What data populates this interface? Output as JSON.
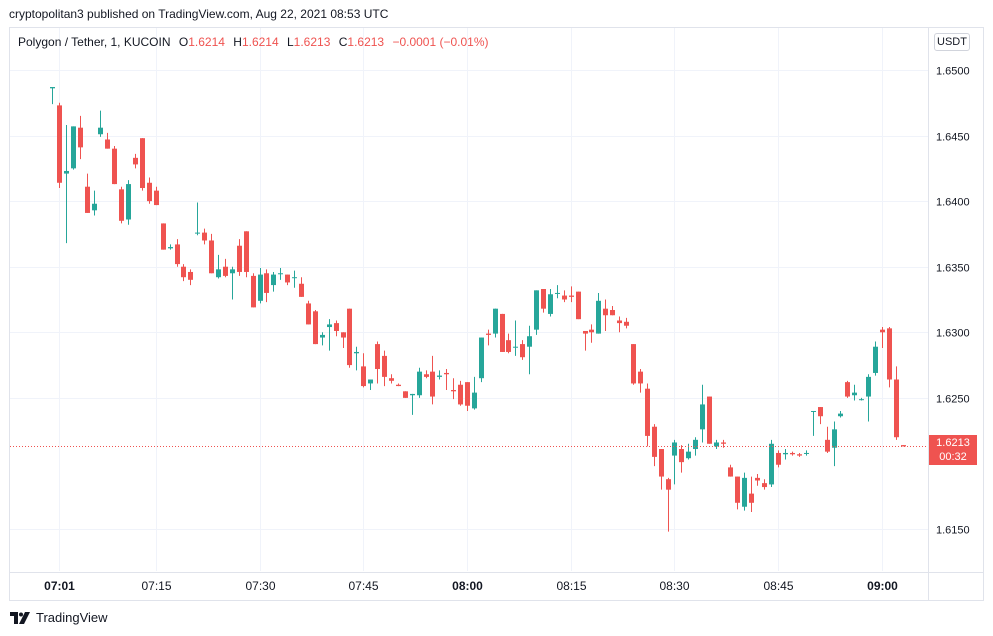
{
  "publisher_line": "cryptopolitan3 published on TradingView.com, Aug 22, 2021 08:53 UTC",
  "legend": {
    "symbol": "Polygon / Tether, 1, KUCOIN",
    "o_label": "O",
    "o": "1.6214",
    "h_label": "H",
    "h": "1.6214",
    "l_label": "L",
    "l": "1.6213",
    "c_label": "C",
    "c": "1.6213",
    "change": "−0.0001 (−0.01%)"
  },
  "currency_button": "USDT",
  "last_price": {
    "price": "1.6213",
    "countdown": "00:32"
  },
  "brand": "TradingView",
  "colors": {
    "up": "#26a69a",
    "down": "#ef5350",
    "grid": "#f0f3fa",
    "axis_text": "#131722"
  },
  "chart_data": {
    "type": "candlestick",
    "y_ticks": [
      "1.6500",
      "1.6450",
      "1.6400",
      "1.6350",
      "1.6300",
      "1.6250",
      "1.6150"
    ],
    "y_tick_values": [
      1.65,
      1.645,
      1.64,
      1.635,
      1.63,
      1.625,
      1.615
    ],
    "ylim": [
      1.6118,
      1.6532
    ],
    "x_ticks": [
      {
        "label": "07:01",
        "minute": 1,
        "bold": true
      },
      {
        "label": "07:15",
        "minute": 15,
        "bold": false
      },
      {
        "label": "07:30",
        "minute": 30,
        "bold": false
      },
      {
        "label": "07:45",
        "minute": 45,
        "bold": false
      },
      {
        "label": "08:00",
        "minute": 60,
        "bold": true
      },
      {
        "label": "08:15",
        "minute": 75,
        "bold": false
      },
      {
        "label": "08:30",
        "minute": 90,
        "bold": false
      },
      {
        "label": "08:45",
        "minute": 105,
        "bold": false
      },
      {
        "label": "09:00",
        "minute": 120,
        "bold": true
      }
    ],
    "x_start": "07:00",
    "last_price_line": 1.6213,
    "candles": [
      [
        1.6486,
        1.6487,
        1.6474,
        1.6487
      ],
      [
        1.6473,
        1.6475,
        1.641,
        1.6414
      ],
      [
        1.6421,
        1.6458,
        1.6368,
        1.6423
      ],
      [
        1.6425,
        1.6457,
        1.6424,
        1.6457
      ],
      [
        1.6456,
        1.6465,
        1.6432,
        1.6441
      ],
      [
        1.6411,
        1.6421,
        1.6391,
        1.6391
      ],
      [
        1.6393,
        1.6408,
        1.6389,
        1.6398
      ],
      [
        1.6451,
        1.6469,
        1.6449,
        1.6456
      ],
      [
        1.6447,
        1.6452,
        1.644,
        1.644
      ],
      [
        1.644,
        1.6442,
        1.6413,
        1.6413
      ],
      [
        1.6409,
        1.6411,
        1.6383,
        1.6385
      ],
      [
        1.6386,
        1.6416,
        1.6382,
        1.6413
      ],
      [
        1.6433,
        1.6436,
        1.6425,
        1.6428
      ],
      [
        1.6448,
        1.6448,
        1.6408,
        1.641
      ],
      [
        1.6414,
        1.6418,
        1.6398,
        1.64
      ],
      [
        1.6408,
        1.6411,
        1.6397,
        1.6397
      ],
      [
        1.6383,
        1.6383,
        1.6363,
        1.6363
      ],
      [
        1.6364,
        1.6367,
        1.6363,
        1.6365
      ],
      [
        1.6367,
        1.6371,
        1.635,
        1.6352
      ],
      [
        1.635,
        1.6352,
        1.6339,
        1.6342
      ],
      [
        1.6346,
        1.6348,
        1.6336,
        1.634
      ],
      [
        1.6376,
        1.6399,
        1.6374,
        1.6376
      ],
      [
        1.6376,
        1.6379,
        1.6367,
        1.637
      ],
      [
        1.637,
        1.6375,
        1.6345,
        1.6345
      ],
      [
        1.6342,
        1.6359,
        1.6341,
        1.6348
      ],
      [
        1.635,
        1.6356,
        1.6342,
        1.6343
      ],
      [
        1.6345,
        1.635,
        1.6325,
        1.6348
      ],
      [
        1.6366,
        1.6371,
        1.6343,
        1.6346
      ],
      [
        1.6377,
        1.6377,
        1.6342,
        1.6346
      ],
      [
        1.6343,
        1.6345,
        1.6319,
        1.6319
      ],
      [
        1.6324,
        1.6349,
        1.6322,
        1.6344
      ],
      [
        1.6345,
        1.6348,
        1.6323,
        1.633
      ],
      [
        1.6336,
        1.6346,
        1.6331,
        1.6344
      ],
      [
        1.6345,
        1.6349,
        1.634,
        1.6345
      ],
      [
        1.6344,
        1.6344,
        1.6336,
        1.6338
      ],
      [
        1.6342,
        1.6347,
        1.6334,
        1.6342
      ],
      [
        1.6337,
        1.6342,
        1.6327,
        1.6327
      ],
      [
        1.6322,
        1.6324,
        1.6306,
        1.6306
      ],
      [
        1.6316,
        1.6317,
        1.6291,
        1.6291
      ],
      [
        1.6296,
        1.63,
        1.629,
        1.6298
      ],
      [
        1.6304,
        1.631,
        1.6286,
        1.6306
      ],
      [
        1.6307,
        1.6309,
        1.6297,
        1.6301
      ],
      [
        1.63,
        1.63,
        1.6288,
        1.6296
      ],
      [
        1.6318,
        1.6318,
        1.6273,
        1.6275
      ],
      [
        1.6284,
        1.6289,
        1.6271,
        1.6285
      ],
      [
        1.6274,
        1.6284,
        1.6258,
        1.6259
      ],
      [
        1.6261,
        1.6264,
        1.6256,
        1.6264
      ],
      [
        1.6291,
        1.6293,
        1.6261,
        1.6272
      ],
      [
        1.6282,
        1.6286,
        1.6259,
        1.6266
      ],
      [
        1.6265,
        1.6268,
        1.6261,
        1.6263
      ],
      [
        1.626,
        1.6261,
        1.6259,
        1.6259
      ],
      [
        1.6255,
        1.6255,
        1.625,
        1.625
      ],
      [
        1.6252,
        1.6253,
        1.6237,
        1.6253
      ],
      [
        1.6252,
        1.6273,
        1.625,
        1.627
      ],
      [
        1.6268,
        1.6271,
        1.6265,
        1.6266
      ],
      [
        1.627,
        1.6282,
        1.6245,
        1.6251
      ],
      [
        1.6266,
        1.6271,
        1.6264,
        1.6267
      ],
      [
        1.6269,
        1.6272,
        1.6256,
        1.6268
      ],
      [
        1.6256,
        1.6265,
        1.6249,
        1.6255
      ],
      [
        1.626,
        1.6263,
        1.6244,
        1.6245
      ],
      [
        1.6262,
        1.6262,
        1.624,
        1.6244
      ],
      [
        1.6242,
        1.6266,
        1.6241,
        1.6254
      ],
      [
        1.6265,
        1.6296,
        1.6262,
        1.6296
      ],
      [
        1.6299,
        1.6302,
        1.629,
        1.6298
      ],
      [
        1.6299,
        1.6318,
        1.6296,
        1.6318
      ],
      [
        1.6314,
        1.6314,
        1.6285,
        1.6285
      ],
      [
        1.6294,
        1.6299,
        1.6284,
        1.6285
      ],
      [
        1.6289,
        1.6309,
        1.6282,
        1.6289
      ],
      [
        1.6291,
        1.6294,
        1.6279,
        1.6281
      ],
      [
        1.6289,
        1.6305,
        1.6268,
        1.6297
      ],
      [
        1.6302,
        1.6332,
        1.6298,
        1.6332
      ],
      [
        1.6333,
        1.6333,
        1.6315,
        1.6318
      ],
      [
        1.6314,
        1.6333,
        1.6312,
        1.6329
      ],
      [
        1.633,
        1.6336,
        1.6326,
        1.633
      ],
      [
        1.6328,
        1.6332,
        1.6323,
        1.6325
      ],
      [
        1.6328,
        1.6335,
        1.6323,
        1.6327
      ],
      [
        1.6331,
        1.6331,
        1.631,
        1.631
      ],
      [
        1.6301,
        1.6301,
        1.6286,
        1.6299
      ],
      [
        1.6302,
        1.6306,
        1.6292,
        1.63
      ],
      [
        1.6299,
        1.633,
        1.6299,
        1.6324
      ],
      [
        1.6318,
        1.6325,
        1.6301,
        1.6313
      ],
      [
        1.6317,
        1.632,
        1.6313,
        1.6313
      ],
      [
        1.6309,
        1.6312,
        1.63,
        1.6307
      ],
      [
        1.6308,
        1.6311,
        1.6303,
        1.6305
      ],
      [
        1.6291,
        1.6291,
        1.626,
        1.6261
      ],
      [
        1.627,
        1.6272,
        1.6254,
        1.6261
      ],
      [
        1.6257,
        1.6261,
        1.6213,
        1.6221
      ],
      [
        1.6228,
        1.623,
        1.6198,
        1.6205
      ],
      [
        1.6211,
        1.6211,
        1.618,
        1.619
      ],
      [
        1.6188,
        1.6189,
        1.6148,
        1.618
      ],
      [
        1.6206,
        1.6218,
        1.6184,
        1.6216
      ],
      [
        1.6211,
        1.6214,
        1.6193,
        1.6201
      ],
      [
        1.6204,
        1.6215,
        1.6203,
        1.6209
      ],
      [
        1.6211,
        1.622,
        1.6206,
        1.6218
      ],
      [
        1.6226,
        1.626,
        1.6216,
        1.6245
      ],
      [
        1.6251,
        1.6251,
        1.6215,
        1.6215
      ],
      [
        1.6213,
        1.6218,
        1.6211,
        1.6216
      ],
      [
        1.6216,
        1.6218,
        1.6212,
        1.6215
      ],
      [
        1.6197,
        1.6199,
        1.619,
        1.619
      ],
      [
        1.619,
        1.619,
        1.6165,
        1.617
      ],
      [
        1.6167,
        1.6193,
        1.6164,
        1.6189
      ],
      [
        1.6177,
        1.619,
        1.6163,
        1.617
      ],
      [
        1.6189,
        1.6192,
        1.6183,
        1.6187
      ],
      [
        1.6185,
        1.6188,
        1.618,
        1.6182
      ],
      [
        1.6184,
        1.6218,
        1.6182,
        1.6215
      ],
      [
        1.6208,
        1.621,
        1.6197,
        1.6199
      ],
      [
        1.6207,
        1.6211,
        1.6203,
        1.6208
      ],
      [
        1.6208,
        1.6209,
        1.6206,
        1.6207
      ],
      [
        1.6207,
        1.6208,
        1.6205,
        1.6206
      ],
      [
        1.6208,
        1.621,
        1.6206,
        1.6208
      ],
      [
        1.624,
        1.624,
        1.6221,
        1.624
      ],
      [
        1.6243,
        1.6243,
        1.623,
        1.6236
      ],
      [
        1.6218,
        1.6228,
        1.6208,
        1.6209
      ],
      [
        1.6212,
        1.6232,
        1.6198,
        1.6226
      ],
      [
        1.6236,
        1.624,
        1.6235,
        1.6238
      ],
      [
        1.6262,
        1.6263,
        1.625,
        1.6251
      ],
      [
        1.6252,
        1.626,
        1.6248,
        1.6254
      ],
      [
        1.6249,
        1.625,
        1.6248,
        1.6249
      ],
      [
        1.6251,
        1.6268,
        1.6232,
        1.6266
      ],
      [
        1.6269,
        1.6293,
        1.6267,
        1.6289
      ],
      [
        1.6302,
        1.6304,
        1.6288,
        1.63
      ],
      [
        1.6303,
        1.6304,
        1.6258,
        1.6264
      ],
      [
        1.6264,
        1.6274,
        1.6218,
        1.622
      ],
      [
        1.6214,
        1.6214,
        1.6213,
        1.6213
      ]
    ]
  }
}
